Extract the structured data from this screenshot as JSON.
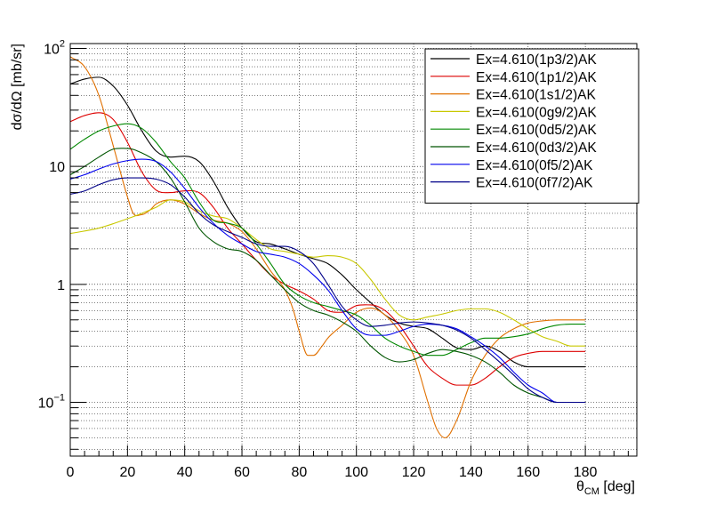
{
  "chart_data": {
    "type": "line",
    "title": "",
    "xlabel": {
      "base": "θ",
      "sub": "CM",
      "rest": " [deg]"
    },
    "ylabel": "dσ/dΩ [mb/sr]",
    "xlim": [
      0,
      198
    ],
    "ylim": [
      0.035,
      110
    ],
    "yscale": "log",
    "grid": true,
    "legend_position": "top-right",
    "x_ticks": [
      0,
      20,
      40,
      60,
      80,
      100,
      120,
      140,
      160,
      180
    ],
    "x_tick_labels": [
      "0",
      "20",
      "40",
      "60",
      "80",
      "100",
      "120",
      "140",
      "160",
      "180"
    ],
    "y_major_ticks": [
      {
        "value": 0.1,
        "base": "10",
        "exp": "−1"
      },
      {
        "value": 1,
        "base": "1",
        "exp": ""
      },
      {
        "value": 10,
        "base": "10",
        "exp": ""
      },
      {
        "value": 100,
        "base": "10",
        "exp": "2"
      }
    ],
    "series": [
      {
        "name": "Ex=4.610(1p3/2)AK",
        "color": "#000000",
        "points": [
          [
            0,
            50
          ],
          [
            5,
            55
          ],
          [
            10,
            57
          ],
          [
            15,
            48
          ],
          [
            20,
            33
          ],
          [
            25,
            20
          ],
          [
            30,
            13.5
          ],
          [
            35,
            12
          ],
          [
            40,
            12.2
          ],
          [
            45,
            11
          ],
          [
            50,
            7.5
          ],
          [
            55,
            4.5
          ],
          [
            60,
            3
          ],
          [
            65,
            2.3
          ],
          [
            70,
            2.2
          ],
          [
            75,
            2
          ],
          [
            80,
            1.8
          ],
          [
            85,
            1.65
          ],
          [
            90,
            1.5
          ],
          [
            95,
            1.2
          ],
          [
            100,
            0.9
          ],
          [
            105,
            0.7
          ],
          [
            110,
            0.55
          ],
          [
            115,
            0.47
          ],
          [
            120,
            0.44
          ],
          [
            125,
            0.42
          ],
          [
            130,
            0.35
          ],
          [
            135,
            0.29
          ],
          [
            140,
            0.28
          ],
          [
            145,
            0.3
          ],
          [
            150,
            0.27
          ],
          [
            155,
            0.22
          ],
          [
            160,
            0.2
          ],
          [
            165,
            0.2
          ],
          [
            170,
            0.2
          ],
          [
            175,
            0.2
          ],
          [
            180,
            0.2
          ]
        ]
      },
      {
        "name": "Ex=4.610(1p1/2)AK",
        "color": "#dd0000",
        "points": [
          [
            0,
            24
          ],
          [
            5,
            27
          ],
          [
            10,
            28.5
          ],
          [
            15,
            25
          ],
          [
            20,
            16
          ],
          [
            25,
            9
          ],
          [
            30,
            6.3
          ],
          [
            35,
            6
          ],
          [
            40,
            6.2
          ],
          [
            45,
            6
          ],
          [
            50,
            4.5
          ],
          [
            55,
            3
          ],
          [
            60,
            2.2
          ],
          [
            65,
            1.6
          ],
          [
            70,
            1.2
          ],
          [
            75,
            1
          ],
          [
            80,
            0.88
          ],
          [
            85,
            0.75
          ],
          [
            90,
            0.6
          ],
          [
            95,
            0.58
          ],
          [
            100,
            0.66
          ],
          [
            105,
            0.67
          ],
          [
            110,
            0.6
          ],
          [
            115,
            0.45
          ],
          [
            120,
            0.3
          ],
          [
            125,
            0.2
          ],
          [
            130,
            0.16
          ],
          [
            135,
            0.14
          ],
          [
            140,
            0.14
          ],
          [
            145,
            0.16
          ],
          [
            150,
            0.2
          ],
          [
            155,
            0.24
          ],
          [
            160,
            0.26
          ],
          [
            165,
            0.27
          ],
          [
            170,
            0.27
          ],
          [
            175,
            0.27
          ],
          [
            180,
            0.27
          ]
        ]
      },
      {
        "name": "Ex=4.610(1s1/2)AK",
        "color": "#e07000",
        "points": [
          [
            0,
            85
          ],
          [
            5,
            70
          ],
          [
            10,
            40
          ],
          [
            15,
            15
          ],
          [
            20,
            5.5
          ],
          [
            22,
            4
          ],
          [
            25,
            3.9
          ],
          [
            28,
            4.3
          ],
          [
            30,
            4.8
          ],
          [
            35,
            5.2
          ],
          [
            40,
            4.8
          ],
          [
            45,
            4
          ],
          [
            50,
            3.5
          ],
          [
            55,
            3.3
          ],
          [
            60,
            2.8
          ],
          [
            65,
            2
          ],
          [
            70,
            1.3
          ],
          [
            75,
            0.9
          ],
          [
            78,
            0.6
          ],
          [
            80,
            0.4
          ],
          [
            83,
            0.25
          ],
          [
            85,
            0.25
          ],
          [
            88,
            0.3
          ],
          [
            90,
            0.35
          ],
          [
            95,
            0.45
          ],
          [
            100,
            0.58
          ],
          [
            105,
            0.63
          ],
          [
            110,
            0.55
          ],
          [
            115,
            0.4
          ],
          [
            120,
            0.25
          ],
          [
            125,
            0.1
          ],
          [
            128,
            0.06
          ],
          [
            131,
            0.05
          ],
          [
            135,
            0.07
          ],
          [
            140,
            0.15
          ],
          [
            145,
            0.25
          ],
          [
            150,
            0.35
          ],
          [
            155,
            0.42
          ],
          [
            160,
            0.47
          ],
          [
            165,
            0.49
          ],
          [
            170,
            0.5
          ],
          [
            175,
            0.5
          ],
          [
            180,
            0.5
          ]
        ]
      },
      {
        "name": "Ex=4.610(0g9/2)AK",
        "color": "#c8c800",
        "points": [
          [
            0,
            2.7
          ],
          [
            10,
            3
          ],
          [
            20,
            3.6
          ],
          [
            25,
            4
          ],
          [
            30,
            4.5
          ],
          [
            35,
            5.2
          ],
          [
            40,
            5
          ],
          [
            45,
            4.2
          ],
          [
            50,
            3.8
          ],
          [
            55,
            3.6
          ],
          [
            60,
            3
          ],
          [
            65,
            2.4
          ],
          [
            70,
            2
          ],
          [
            75,
            1.9
          ],
          [
            80,
            1.8
          ],
          [
            85,
            1.7
          ],
          [
            90,
            1.75
          ],
          [
            95,
            1.7
          ],
          [
            100,
            1.5
          ],
          [
            105,
            1.1
          ],
          [
            110,
            0.75
          ],
          [
            115,
            0.55
          ],
          [
            120,
            0.5
          ],
          [
            125,
            0.53
          ],
          [
            130,
            0.56
          ],
          [
            135,
            0.6
          ],
          [
            140,
            0.62
          ],
          [
            145,
            0.62
          ],
          [
            150,
            0.58
          ],
          [
            155,
            0.5
          ],
          [
            160,
            0.42
          ],
          [
            165,
            0.36
          ],
          [
            170,
            0.33
          ],
          [
            175,
            0.3
          ],
          [
            180,
            0.3
          ]
        ]
      },
      {
        "name": "Ex=4.610(0d5/2)AK",
        "color": "#008800",
        "points": [
          [
            0,
            14
          ],
          [
            5,
            17
          ],
          [
            10,
            20
          ],
          [
            15,
            22
          ],
          [
            20,
            23
          ],
          [
            25,
            21
          ],
          [
            30,
            16
          ],
          [
            35,
            11
          ],
          [
            40,
            8
          ],
          [
            45,
            5
          ],
          [
            50,
            3.5
          ],
          [
            55,
            3.3
          ],
          [
            60,
            3
          ],
          [
            65,
            2.2
          ],
          [
            70,
            1.5
          ],
          [
            75,
            1
          ],
          [
            80,
            0.8
          ],
          [
            85,
            0.7
          ],
          [
            90,
            0.65
          ],
          [
            95,
            0.6
          ],
          [
            100,
            0.55
          ],
          [
            105,
            0.45
          ],
          [
            110,
            0.35
          ],
          [
            115,
            0.3
          ],
          [
            120,
            0.27
          ],
          [
            125,
            0.25
          ],
          [
            130,
            0.25
          ],
          [
            135,
            0.28
          ],
          [
            140,
            0.32
          ],
          [
            145,
            0.35
          ],
          [
            150,
            0.35
          ],
          [
            155,
            0.36
          ],
          [
            160,
            0.38
          ],
          [
            165,
            0.42
          ],
          [
            170,
            0.45
          ],
          [
            175,
            0.46
          ],
          [
            180,
            0.46
          ]
        ]
      },
      {
        "name": "Ex=4.610(0d3/2)AK",
        "color": "#005500",
        "points": [
          [
            0,
            8.5
          ],
          [
            5,
            10
          ],
          [
            10,
            12
          ],
          [
            15,
            14
          ],
          [
            20,
            14.2
          ],
          [
            25,
            13
          ],
          [
            30,
            11
          ],
          [
            35,
            8
          ],
          [
            40,
            5
          ],
          [
            45,
            3
          ],
          [
            50,
            2.3
          ],
          [
            55,
            2
          ],
          [
            60,
            1.9
          ],
          [
            65,
            1.6
          ],
          [
            70,
            1.2
          ],
          [
            75,
            0.9
          ],
          [
            80,
            0.7
          ],
          [
            85,
            0.6
          ],
          [
            90,
            0.55
          ],
          [
            95,
            0.48
          ],
          [
            100,
            0.4
          ],
          [
            105,
            0.3
          ],
          [
            110,
            0.24
          ],
          [
            115,
            0.22
          ],
          [
            120,
            0.23
          ],
          [
            125,
            0.26
          ],
          [
            130,
            0.28
          ],
          [
            135,
            0.27
          ],
          [
            140,
            0.25
          ],
          [
            145,
            0.22
          ],
          [
            150,
            0.18
          ],
          [
            155,
            0.14
          ],
          [
            160,
            0.12
          ],
          [
            165,
            0.11
          ],
          [
            170,
            0.1
          ],
          [
            175,
            0.1
          ],
          [
            180,
            0.1
          ]
        ]
      },
      {
        "name": "Ex=4.610(0f5/2)AK",
        "color": "#0000ee",
        "points": [
          [
            0,
            7.8
          ],
          [
            5,
            8.5
          ],
          [
            10,
            9.5
          ],
          [
            15,
            10.5
          ],
          [
            20,
            11.2
          ],
          [
            25,
            11.5
          ],
          [
            30,
            11
          ],
          [
            35,
            9
          ],
          [
            40,
            6.5
          ],
          [
            45,
            4.5
          ],
          [
            50,
            3.3
          ],
          [
            55,
            2.6
          ],
          [
            60,
            2.2
          ],
          [
            65,
            1.9
          ],
          [
            70,
            1.8
          ],
          [
            75,
            1.7
          ],
          [
            80,
            1.5
          ],
          [
            85,
            1.2
          ],
          [
            90,
            0.9
          ],
          [
            95,
            0.6
          ],
          [
            100,
            0.42
          ],
          [
            105,
            0.37
          ],
          [
            110,
            0.37
          ],
          [
            115,
            0.4
          ],
          [
            120,
            0.44
          ],
          [
            125,
            0.46
          ],
          [
            130,
            0.45
          ],
          [
            135,
            0.42
          ],
          [
            140,
            0.36
          ],
          [
            145,
            0.3
          ],
          [
            150,
            0.24
          ],
          [
            155,
            0.18
          ],
          [
            160,
            0.14
          ],
          [
            165,
            0.12
          ],
          [
            170,
            0.1
          ],
          [
            175,
            0.1
          ],
          [
            180,
            0.1
          ]
        ]
      },
      {
        "name": "Ex=4.610(0f7/2)AK",
        "color": "#000088",
        "points": [
          [
            0,
            5.8
          ],
          [
            5,
            6.2
          ],
          [
            10,
            7
          ],
          [
            15,
            7.7
          ],
          [
            20,
            8
          ],
          [
            25,
            8
          ],
          [
            30,
            7.8
          ],
          [
            35,
            7
          ],
          [
            40,
            5.5
          ],
          [
            45,
            4
          ],
          [
            50,
            3.2
          ],
          [
            55,
            2.8
          ],
          [
            60,
            2.5
          ],
          [
            65,
            2.2
          ],
          [
            70,
            2.1
          ],
          [
            75,
            2.1
          ],
          [
            80,
            1.9
          ],
          [
            85,
            1.5
          ],
          [
            90,
            1
          ],
          [
            95,
            0.65
          ],
          [
            100,
            0.5
          ],
          [
            105,
            0.44
          ],
          [
            110,
            0.45
          ],
          [
            115,
            0.47
          ],
          [
            120,
            0.48
          ],
          [
            125,
            0.47
          ],
          [
            130,
            0.45
          ],
          [
            135,
            0.41
          ],
          [
            140,
            0.35
          ],
          [
            145,
            0.28
          ],
          [
            150,
            0.22
          ],
          [
            155,
            0.17
          ],
          [
            160,
            0.13
          ],
          [
            165,
            0.11
          ],
          [
            170,
            0.1
          ],
          [
            175,
            0.1
          ],
          [
            180,
            0.1
          ]
        ]
      }
    ]
  }
}
